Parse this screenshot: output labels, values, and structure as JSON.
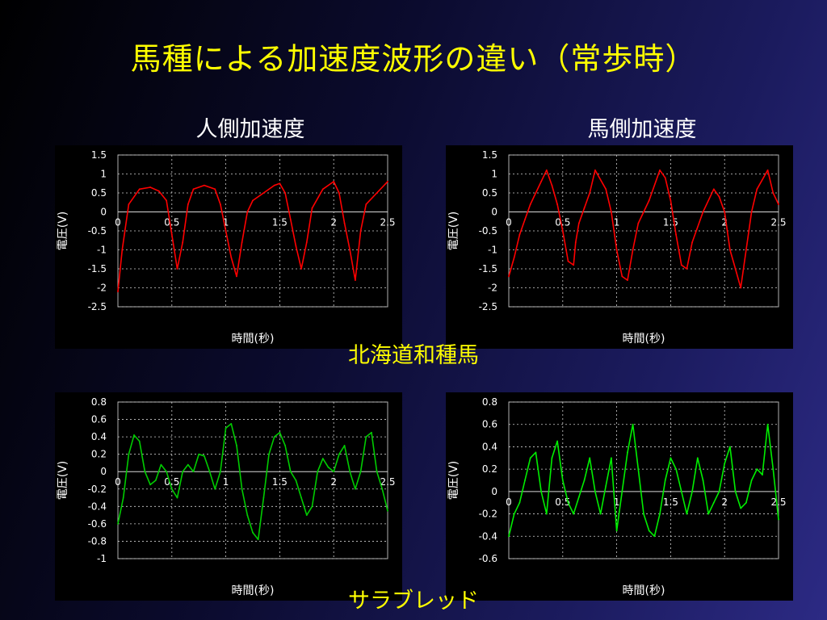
{
  "title": "馬種による加速度波形の違い（常歩時）",
  "subtitles": {
    "left": "人側加速度",
    "right": "馬側加速度"
  },
  "captions": {
    "top": "北海道和種馬",
    "bottom": "サラブレッド"
  },
  "colors": {
    "background": "#000000",
    "title": "#ffff00",
    "red": "#ff0000",
    "green": "#00cc00",
    "grid": "#cfcfcf",
    "axis": "#b0b0b0"
  },
  "chart_data": [
    {
      "type": "line",
      "color": "#ff0000",
      "xlabel": "時間(秒)",
      "ylabel": "電圧(V)",
      "xlim": [
        0,
        2.5
      ],
      "ylim": [
        -2.5,
        1.5
      ],
      "xticks": [
        0,
        0.5,
        1,
        1.5,
        2,
        2.5
      ],
      "xtick_labels": [
        "0",
        "0.5",
        "1",
        "1.5",
        "2",
        "2.5"
      ],
      "yticks": [
        1.5,
        1,
        0.5,
        0,
        -0.5,
        -1,
        -1.5,
        -2,
        -2.5
      ],
      "ytick_labels": [
        "1.5",
        "1",
        "0.5",
        "0",
        "-0.5",
        "-1",
        "-1.5",
        "-2",
        "-2.5"
      ],
      "series": [
        {
          "x": [
            0,
            0.04,
            0.1,
            0.2,
            0.3,
            0.38,
            0.45,
            0.5,
            0.55,
            0.6,
            0.65,
            0.7,
            0.8,
            0.9,
            0.95,
            1.0,
            1.05,
            1.1,
            1.15,
            1.2,
            1.25,
            1.35,
            1.45,
            1.5,
            1.55,
            1.6,
            1.65,
            1.7,
            1.75,
            1.8,
            1.9,
            2.0,
            2.05,
            2.1,
            2.15,
            2.2,
            2.25,
            2.3,
            2.4,
            2.5
          ],
          "y": [
            -2.1,
            -1.0,
            0.2,
            0.6,
            0.65,
            0.55,
            0.3,
            -0.6,
            -1.5,
            -0.8,
            0.2,
            0.6,
            0.7,
            0.6,
            0.2,
            -0.5,
            -1.2,
            -1.7,
            -0.8,
            0.0,
            0.3,
            0.5,
            0.7,
            0.75,
            0.5,
            -0.2,
            -0.9,
            -1.5,
            -0.8,
            0.1,
            0.6,
            0.8,
            0.5,
            -0.3,
            -1.0,
            -1.8,
            -0.5,
            0.2,
            0.5,
            0.8
          ]
        }
      ]
    },
    {
      "type": "line",
      "color": "#ff0000",
      "xlabel": "時間(秒)",
      "ylabel": "電圧(V)",
      "xlim": [
        0,
        2.5
      ],
      "ylim": [
        -2.5,
        1.5
      ],
      "xticks": [
        0,
        0.5,
        1,
        1.5,
        2,
        2.5
      ],
      "xtick_labels": [
        "0",
        "0.5",
        "1",
        "1.5",
        "2",
        "2.5"
      ],
      "yticks": [
        1.5,
        1,
        0.5,
        0,
        -0.5,
        -1,
        -1.5,
        -2,
        -2.5
      ],
      "ytick_labels": [
        "1.5",
        "1",
        "0.5",
        "0",
        "-0.5",
        "-1",
        "-1.5",
        "-2",
        "-2.5"
      ],
      "series": [
        {
          "x": [
            0,
            0.05,
            0.1,
            0.15,
            0.2,
            0.3,
            0.35,
            0.4,
            0.45,
            0.5,
            0.55,
            0.6,
            0.62,
            0.65,
            0.7,
            0.75,
            0.8,
            0.9,
            0.95,
            1.0,
            1.05,
            1.1,
            1.15,
            1.2,
            1.25,
            1.3,
            1.4,
            1.45,
            1.5,
            1.55,
            1.6,
            1.65,
            1.7,
            1.8,
            1.9,
            1.95,
            2.0,
            2.05,
            2.1,
            2.15,
            2.2,
            2.25,
            2.3,
            2.4,
            2.45,
            2.5
          ],
          "y": [
            -1.7,
            -1.2,
            -0.6,
            -0.2,
            0.2,
            0.8,
            1.1,
            0.7,
            0.2,
            -0.5,
            -1.3,
            -1.4,
            -0.8,
            -0.3,
            0.1,
            0.5,
            1.1,
            0.6,
            0.0,
            -1.0,
            -1.7,
            -1.8,
            -1.0,
            -0.3,
            0.0,
            0.3,
            1.1,
            0.9,
            0.3,
            -0.6,
            -1.4,
            -1.5,
            -0.8,
            0.0,
            0.6,
            0.4,
            0.0,
            -1.0,
            -1.5,
            -2.0,
            -1.0,
            0.0,
            0.6,
            1.1,
            0.5,
            0.2
          ]
        }
      ]
    },
    {
      "type": "line",
      "color": "#00cc00",
      "xlabel": "時間(秒)",
      "ylabel": "電圧(V)",
      "xlim": [
        0,
        2.5
      ],
      "ylim": [
        -1,
        0.8
      ],
      "xticks": [
        0,
        0.5,
        1,
        1.5,
        2,
        2.5
      ],
      "xtick_labels": [
        "0",
        "0.5",
        "1",
        "1.5",
        "2",
        "2.5"
      ],
      "yticks": [
        0.8,
        0.6,
        0.4,
        0.2,
        0,
        -0.2,
        -0.4,
        -0.6,
        -0.8,
        -1
      ],
      "ytick_labels": [
        "0.8",
        "0.6",
        "0.4",
        "0.2",
        "0",
        "-0.2",
        "-0.4",
        "-0.6",
        "-0.8",
        "-1"
      ],
      "series": [
        {
          "x": [
            0,
            0.05,
            0.1,
            0.15,
            0.2,
            0.25,
            0.3,
            0.35,
            0.4,
            0.45,
            0.5,
            0.55,
            0.6,
            0.65,
            0.7,
            0.75,
            0.8,
            0.85,
            0.9,
            0.95,
            1.0,
            1.05,
            1.1,
            1.15,
            1.2,
            1.25,
            1.3,
            1.35,
            1.4,
            1.45,
            1.5,
            1.55,
            1.6,
            1.65,
            1.7,
            1.75,
            1.8,
            1.85,
            1.9,
            1.95,
            2.0,
            2.05,
            2.1,
            2.15,
            2.2,
            2.25,
            2.3,
            2.35,
            2.4,
            2.45,
            2.5
          ],
          "y": [
            -0.6,
            -0.3,
            0.2,
            0.42,
            0.35,
            0.0,
            -0.15,
            -0.1,
            0.08,
            0.0,
            -0.2,
            -0.3,
            0.0,
            0.08,
            0.0,
            0.2,
            0.18,
            0.0,
            -0.2,
            0.0,
            0.5,
            0.55,
            0.3,
            -0.2,
            -0.5,
            -0.7,
            -0.78,
            -0.3,
            0.2,
            0.4,
            0.45,
            0.3,
            0.0,
            -0.1,
            -0.3,
            -0.5,
            -0.4,
            0.0,
            0.15,
            0.05,
            0.0,
            0.2,
            0.3,
            0.0,
            -0.2,
            0.0,
            0.4,
            0.45,
            0.0,
            -0.2,
            -0.45
          ]
        }
      ]
    },
    {
      "type": "line",
      "color": "#00ee00",
      "xlabel": "時間(秒)",
      "ylabel": "電圧(V)",
      "xlim": [
        0,
        2.5
      ],
      "ylim": [
        -0.6,
        0.8
      ],
      "xticks": [
        0,
        0.5,
        1,
        1.5,
        2,
        2.5
      ],
      "xtick_labels": [
        "0",
        "0.5",
        "1",
        "1.5",
        "2",
        "2.5"
      ],
      "yticks": [
        0.8,
        0.6,
        0.4,
        0.2,
        0,
        -0.2,
        -0.4,
        -0.6
      ],
      "ytick_labels": [
        "0.8",
        "0.6",
        "0.4",
        "0.2",
        "0",
        "-0.2",
        "-0.4",
        "-0.6"
      ],
      "series": [
        {
          "x": [
            0,
            0.05,
            0.1,
            0.15,
            0.2,
            0.25,
            0.3,
            0.35,
            0.4,
            0.45,
            0.5,
            0.55,
            0.6,
            0.65,
            0.7,
            0.75,
            0.8,
            0.85,
            0.9,
            0.95,
            1.0,
            1.05,
            1.1,
            1.15,
            1.2,
            1.25,
            1.3,
            1.35,
            1.4,
            1.45,
            1.5,
            1.55,
            1.6,
            1.65,
            1.7,
            1.75,
            1.8,
            1.85,
            1.9,
            1.95,
            2.0,
            2.05,
            2.1,
            2.15,
            2.2,
            2.25,
            2.3,
            2.35,
            2.4,
            2.45,
            2.5
          ],
          "y": [
            -0.4,
            -0.2,
            -0.1,
            0.1,
            0.3,
            0.35,
            0.0,
            -0.2,
            0.3,
            0.45,
            0.1,
            -0.1,
            -0.2,
            -0.05,
            0.1,
            0.3,
            0.0,
            -0.2,
            0.05,
            0.3,
            -0.35,
            0.0,
            0.35,
            0.6,
            0.2,
            -0.2,
            -0.35,
            -0.4,
            -0.2,
            0.1,
            0.3,
            0.2,
            0.0,
            -0.2,
            0.0,
            0.3,
            0.1,
            -0.2,
            -0.1,
            0.0,
            0.25,
            0.4,
            0.0,
            -0.15,
            -0.1,
            0.1,
            0.2,
            0.15,
            0.6,
            0.2,
            -0.25
          ]
        }
      ]
    }
  ]
}
